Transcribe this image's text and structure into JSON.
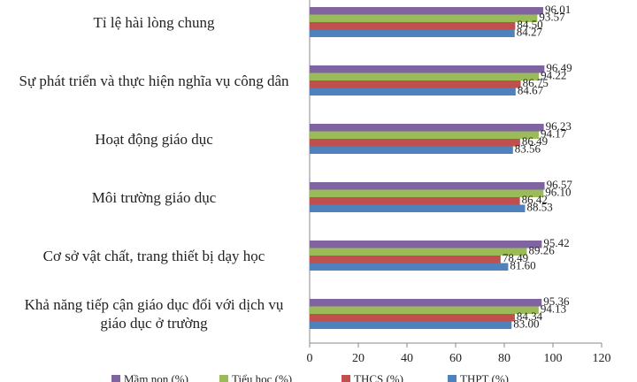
{
  "chart_data": {
    "type": "bar",
    "orientation": "horizontal",
    "categories": [
      "Tỉ lệ hài lòng chung",
      "Sự phát triển và thực hiện nghĩa vụ công dân",
      "Hoạt động giáo dục",
      "Môi trường giáo dục",
      "Cơ sở vật chất, trang thiết bị dạy học",
      "Khả năng tiếp cận giáo dục đối với dịch vụ giáo dục ở trường"
    ],
    "series": [
      {
        "name": "Mầm non (%)",
        "color": "#8064a2",
        "values": [
          96.01,
          96.49,
          96.23,
          96.57,
          95.42,
          95.36
        ],
        "value_labels": [
          "96.01",
          "96.49",
          "96.23",
          "96.57",
          "95.42",
          "95.36"
        ]
      },
      {
        "name": "Tiểu học (%)",
        "color": "#9bbb59",
        "values": [
          93.57,
          94.22,
          94.17,
          96.1,
          89.26,
          94.13
        ],
        "value_labels": [
          "93.57",
          "94.22",
          "94.17",
          "96.10",
          "89.26",
          "94.13"
        ]
      },
      {
        "name": "THCS (%)",
        "color": "#c0504d",
        "values": [
          84.5,
          86.75,
          86.49,
          86.42,
          78.49,
          84.34
        ],
        "value_labels": [
          "84.50",
          "86.75",
          "86.49",
          "86.42",
          "78.49",
          "84.34"
        ]
      },
      {
        "name": "THPT (%)",
        "color": "#4f81bd",
        "values": [
          84.27,
          84.67,
          83.56,
          88.53,
          81.6,
          83.0
        ],
        "value_labels": [
          "84.27",
          "84.67",
          "83.56",
          "88.53",
          "81.60",
          "83.00"
        ]
      }
    ],
    "xlim": [
      0,
      120
    ],
    "xticks": [
      0,
      20,
      40,
      60,
      80,
      100,
      120
    ],
    "grid": false,
    "legend": "bottom"
  }
}
